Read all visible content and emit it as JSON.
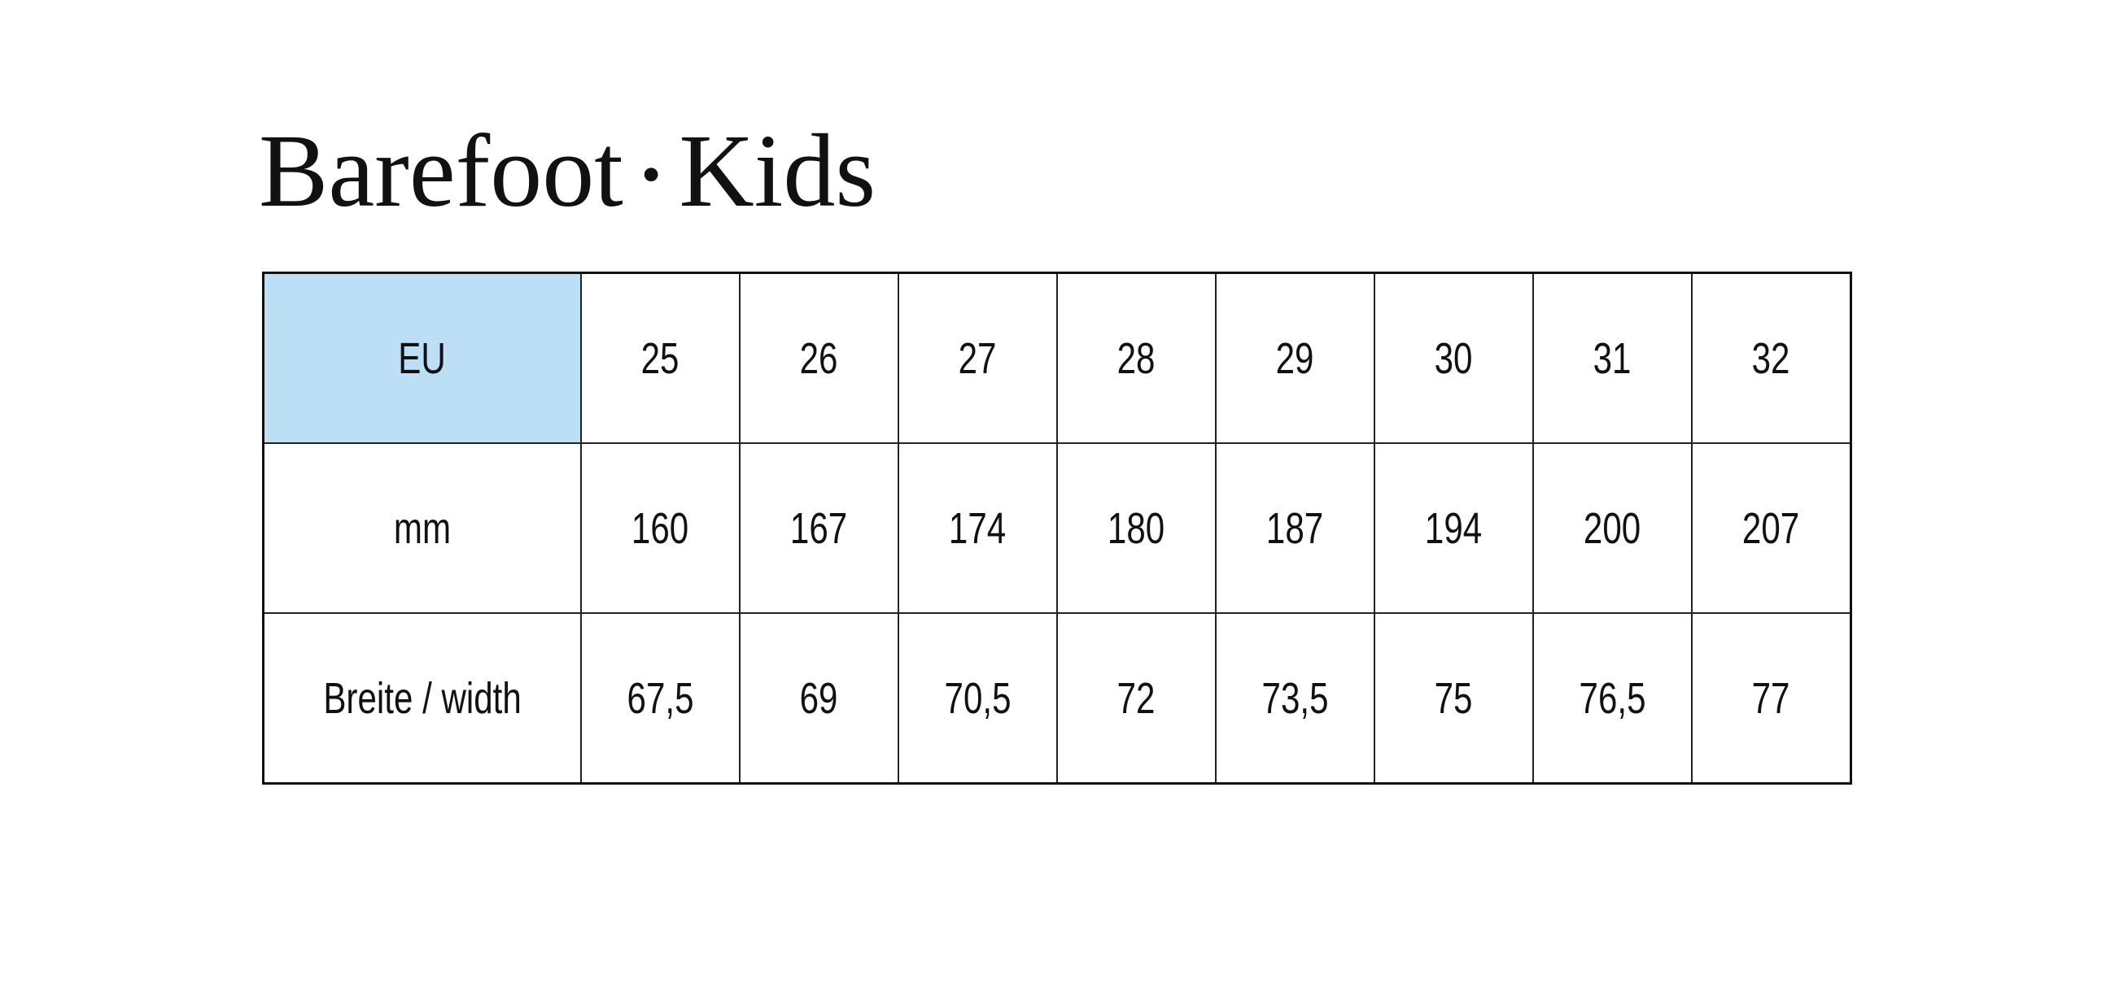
{
  "title": {
    "part1": "Barefoot",
    "separator": "•",
    "part2": "Kids"
  },
  "highlight_color": "#bddff5",
  "table": {
    "rows": [
      {
        "label": "EU",
        "values": [
          "25",
          "26",
          "27",
          "28",
          "29",
          "30",
          "31",
          "32"
        ]
      },
      {
        "label": "mm",
        "values": [
          "160",
          "167",
          "174",
          "180",
          "187",
          "194",
          "200",
          "207"
        ]
      },
      {
        "label": "Breite / width",
        "values": [
          "67,5",
          "69",
          "70,5",
          "72",
          "73,5",
          "75",
          "76,5",
          "77"
        ]
      }
    ]
  }
}
